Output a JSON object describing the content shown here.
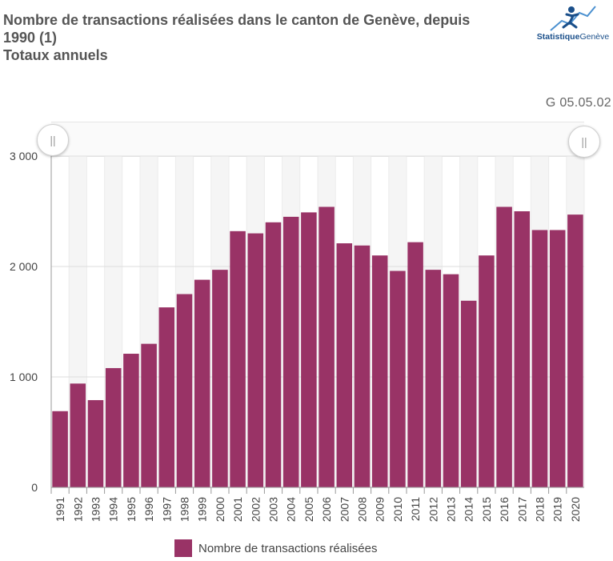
{
  "header": {
    "title_line1": "Nombre de transactions réalisées dans le canton de Genève, depuis",
    "title_line2": "1990 (1)",
    "subtitle": "Totaux annuels",
    "chart_code": "G 05.05.02"
  },
  "logo": {
    "name_bold": "Statistique",
    "name_rest": "Genève"
  },
  "navigator": {
    "left_handle_glyph": "||",
    "right_handle_glyph": "||"
  },
  "colors": {
    "bar": "#993366",
    "grid": "#dddddd",
    "band": "#f5f5f5"
  },
  "chart_data": {
    "type": "bar",
    "categories": [
      "1991",
      "1992",
      "1993",
      "1994",
      "1995",
      "1996",
      "1997",
      "1998",
      "1999",
      "2000",
      "2001",
      "2002",
      "2003",
      "2004",
      "2005",
      "2006",
      "2007",
      "2008",
      "2009",
      "2010",
      "2011",
      "2012",
      "2013",
      "2014",
      "2015",
      "2016",
      "2017",
      "2018",
      "2019",
      "2020"
    ],
    "series": [
      {
        "name": "Nombre de transactions réalisées",
        "values": [
          690,
          940,
          790,
          1080,
          1210,
          1300,
          1630,
          1750,
          1880,
          1970,
          2320,
          2300,
          2400,
          2450,
          2490,
          2540,
          2210,
          2190,
          2100,
          1960,
          2220,
          1970,
          1930,
          1690,
          2100,
          2540,
          2500,
          2330,
          2330,
          2470
        ]
      }
    ],
    "y_ticks": [
      "0",
      "1 000",
      "2 000",
      "3 000"
    ],
    "y_tick_values": [
      0,
      1000,
      2000,
      3000
    ],
    "ylim": [
      0,
      3000
    ],
    "grid": true,
    "legend_position": "bottom"
  }
}
